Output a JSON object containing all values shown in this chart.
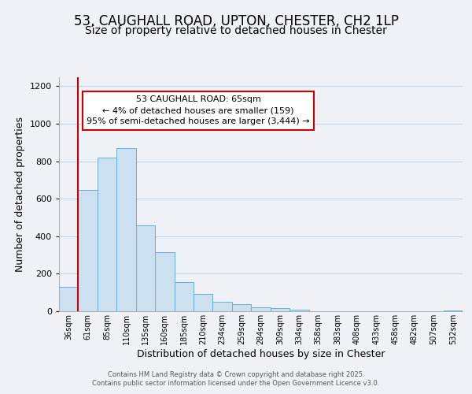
{
  "title": "53, CAUGHALL ROAD, UPTON, CHESTER, CH2 1LP",
  "subtitle": "Size of property relative to detached houses in Chester",
  "xlabel": "Distribution of detached houses by size in Chester",
  "ylabel": "Number of detached properties",
  "categories": [
    "36sqm",
    "61sqm",
    "85sqm",
    "110sqm",
    "135sqm",
    "160sqm",
    "185sqm",
    "210sqm",
    "234sqm",
    "259sqm",
    "284sqm",
    "309sqm",
    "334sqm",
    "358sqm",
    "383sqm",
    "408sqm",
    "433sqm",
    "458sqm",
    "482sqm",
    "507sqm",
    "532sqm"
  ],
  "bar_heights": [
    130,
    648,
    820,
    868,
    460,
    315,
    157,
    92,
    50,
    38,
    20,
    15,
    10,
    0,
    0,
    0,
    0,
    0,
    0,
    0,
    5
  ],
  "bar_color": "#cce0f0",
  "bar_edge_color": "#6aafd6",
  "vline_x_index": 1,
  "vline_color": "#cc0000",
  "annotation_title": "53 CAUGHALL ROAD: 65sqm",
  "annotation_line1": "← 4% of detached houses are smaller (159)",
  "annotation_line2": "95% of semi-detached houses are larger (3,444) →",
  "annotation_box_color": "#ffffff",
  "annotation_box_edge": "#cc0000",
  "ylim": [
    0,
    1250
  ],
  "yticks": [
    0,
    200,
    400,
    600,
    800,
    1000,
    1200
  ],
  "background_color": "#eef2f7",
  "plot_bg_color": "#eef2f7",
  "grid_color": "#c5d5e5",
  "footer1": "Contains HM Land Registry data © Crown copyright and database right 2025.",
  "footer2": "Contains public sector information licensed under the Open Government Licence v3.0.",
  "title_fontsize": 12,
  "subtitle_fontsize": 10
}
